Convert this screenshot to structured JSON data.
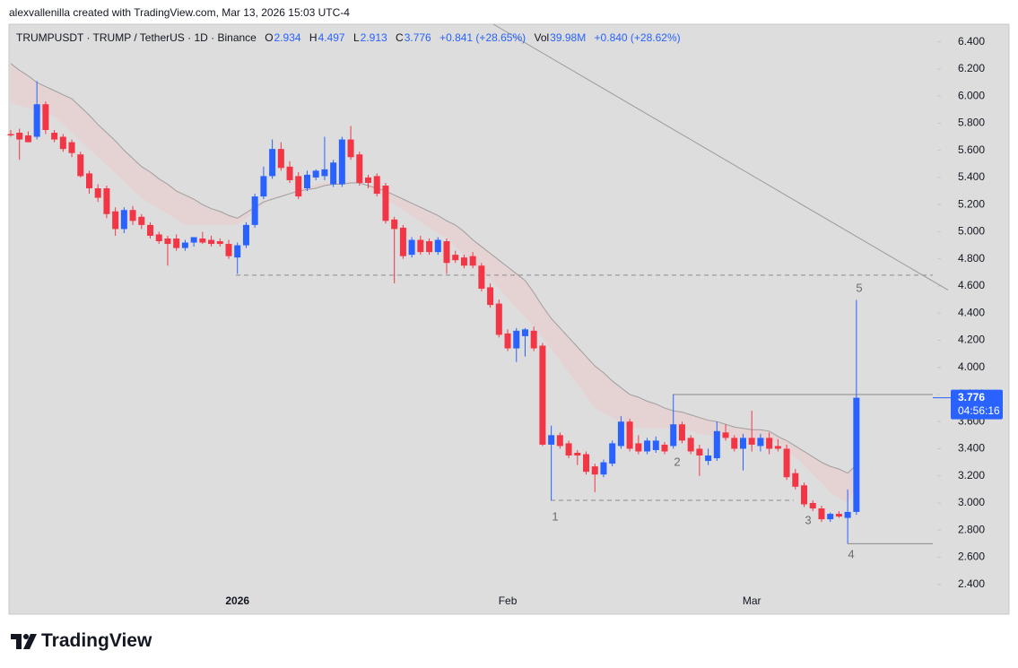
{
  "header": {
    "credit": "alexvallenilla created with TradingView.com, Mar 13, 2026 15:03 UTC-4",
    "symbol": "TRUMPUSDT · TRUMP / TetherUS · 1D · Binance",
    "ohlc_labels": [
      "O",
      "H",
      "L",
      "C"
    ],
    "change": "+0.841 (+28.65%)",
    "volume_label": "Vol",
    "volume": "39.98M",
    "volume_change": "+0.840 (+28.62%)"
  },
  "chart_data": {
    "type": "candlestick",
    "categories": [
      null,
      null,
      null,
      null,
      null,
      null,
      null,
      null,
      null,
      null,
      null,
      null,
      null,
      null,
      null,
      null,
      null,
      null,
      null,
      null,
      null,
      null,
      null,
      null,
      null,
      null,
      "2026",
      null,
      null,
      null,
      null,
      null,
      null,
      null,
      null,
      null,
      null,
      null,
      null,
      null,
      null,
      null,
      null,
      null,
      null,
      null,
      null,
      null,
      null,
      null,
      null,
      null,
      null,
      null,
      null,
      null,
      null,
      "Feb",
      null,
      null,
      null,
      null,
      null,
      null,
      null,
      null,
      null,
      null,
      null,
      null,
      null,
      null,
      null,
      null,
      null,
      null,
      null,
      null,
      null,
      null,
      null,
      null,
      null,
      null,
      null,
      "Mar",
      null,
      null,
      null,
      null,
      null,
      null,
      null,
      null,
      null,
      null,
      null,
      null
    ],
    "open": [
      5.72,
      5.73,
      5.71,
      5.7,
      5.94,
      5.73,
      5.7,
      5.66,
      5.57,
      5.43,
      5.32,
      5.32,
      5.15,
      5.02,
      5.16,
      5.11,
      5.05,
      4.98,
      4.95,
      4.95,
      4.88,
      4.92,
      4.95,
      4.94,
      4.93,
      4.91,
      4.81,
      4.9,
      5.05,
      5.26,
      5.41,
      5.61,
      5.48,
      5.41,
      5.32,
      5.4,
      5.41,
      5.35,
      5.35,
      5.68,
      5.57,
      5.4,
      5.41,
      5.34,
      5.09,
      5.03,
      4.83,
      4.94,
      4.93,
      4.85,
      4.93,
      4.83,
      4.81,
      4.82,
      4.75,
      4.59,
      4.47,
      4.25,
      4.14,
      4.23,
      4.27,
      4.16,
      3.43,
      3.5,
      3.44,
      3.37,
      3.36,
      3.27,
      3.21,
      3.29,
      3.42,
      3.6,
      3.44,
      3.38,
      3.39,
      3.43,
      3.42,
      3.58,
      3.48,
      3.4,
      3.31,
      3.33,
      3.52,
      3.48,
      3.4,
      3.48,
      3.42,
      3.48,
      3.42,
      3.4,
      3.22,
      3.13,
      3.0,
      2.96,
      2.88,
      2.92,
      2.89,
      2.934
    ],
    "high": [
      5.75,
      5.76,
      5.74,
      6.11,
      5.96,
      5.75,
      5.72,
      5.68,
      5.59,
      5.45,
      5.35,
      5.34,
      5.18,
      5.18,
      5.19,
      5.13,
      5.07,
      5.0,
      4.97,
      4.98,
      4.94,
      4.96,
      5.0,
      4.97,
      4.95,
      4.94,
      4.92,
      5.07,
      5.28,
      5.48,
      5.68,
      5.66,
      5.52,
      5.44,
      5.45,
      5.46,
      5.7,
      5.53,
      5.7,
      5.78,
      5.59,
      5.42,
      5.43,
      5.36,
      5.11,
      5.05,
      4.96,
      4.97,
      4.95,
      4.96,
      4.95,
      4.86,
      4.83,
      4.85,
      4.77,
      4.62,
      4.5,
      4.28,
      4.29,
      4.29,
      4.3,
      4.18,
      3.57,
      3.52,
      3.46,
      3.39,
      3.38,
      3.29,
      3.32,
      3.46,
      3.64,
      3.62,
      3.5,
      3.48,
      3.49,
      3.45,
      3.8,
      3.6,
      3.5,
      3.43,
      3.4,
      3.6,
      3.58,
      3.5,
      3.51,
      3.68,
      3.51,
      3.52,
      3.47,
      3.43,
      3.25,
      3.15,
      3.02,
      2.98,
      2.93,
      2.94,
      3.1,
      4.497
    ],
    "low": [
      5.7,
      5.53,
      5.66,
      5.68,
      5.72,
      5.66,
      5.59,
      5.55,
      5.4,
      5.28,
      5.22,
      5.1,
      4.97,
      4.99,
      5.05,
      5.02,
      4.95,
      4.91,
      4.75,
      4.86,
      4.86,
      4.89,
      4.91,
      4.89,
      4.89,
      4.8,
      4.69,
      4.88,
      5.03,
      5.24,
      5.39,
      5.45,
      5.36,
      5.24,
      5.3,
      5.38,
      5.38,
      5.33,
      5.33,
      5.53,
      5.34,
      5.32,
      5.26,
      5.06,
      4.62,
      4.8,
      4.81,
      4.83,
      4.83,
      4.83,
      4.69,
      4.77,
      4.73,
      4.73,
      4.56,
      4.44,
      4.22,
      4.12,
      4.04,
      4.08,
      4.12,
      3.42,
      3.02,
      3.4,
      3.33,
      3.28,
      3.21,
      3.08,
      3.19,
      3.27,
      3.4,
      3.38,
      3.36,
      3.36,
      3.37,
      3.36,
      3.4,
      3.44,
      3.36,
      3.2,
      3.28,
      3.31,
      3.46,
      3.38,
      3.24,
      3.38,
      3.38,
      3.36,
      3.38,
      3.17,
      3.1,
      2.97,
      2.94,
      2.86,
      2.86,
      2.89,
      2.7,
      2.913
    ],
    "close": [
      5.71,
      5.68,
      5.66,
      5.94,
      5.75,
      5.68,
      5.61,
      5.58,
      5.41,
      5.32,
      5.25,
      5.13,
      5.02,
      5.16,
      5.08,
      5.05,
      4.97,
      4.93,
      4.91,
      4.88,
      4.92,
      4.96,
      4.92,
      4.91,
      4.91,
      4.82,
      4.9,
      5.05,
      5.26,
      5.41,
      5.61,
      5.47,
      5.38,
      5.26,
      5.42,
      5.45,
      5.46,
      5.51,
      5.68,
      5.55,
      5.36,
      5.36,
      5.28,
      5.08,
      5.02,
      4.82,
      4.94,
      4.85,
      4.85,
      4.94,
      4.77,
      4.79,
      4.75,
      4.75,
      4.58,
      4.46,
      4.24,
      4.14,
      4.27,
      4.28,
      4.14,
      3.43,
      3.5,
      3.42,
      3.35,
      3.35,
      3.23,
      3.21,
      3.3,
      3.44,
      3.6,
      3.4,
      3.38,
      3.46,
      3.46,
      3.38,
      3.58,
      3.46,
      3.38,
      3.35,
      3.35,
      3.53,
      3.48,
      3.4,
      3.48,
      3.43,
      3.48,
      3.4,
      3.4,
      3.19,
      3.12,
      2.99,
      2.96,
      2.88,
      2.92,
      2.9,
      2.934,
      3.776
    ],
    "up_color": "#2962ff",
    "down_color": "#f23645",
    "overlays": {
      "slow": {
        "color": "#9e9e9e",
        "values": [
          6.24,
          6.19,
          6.15,
          6.1,
          6.07,
          6.04,
          6.01,
          5.98,
          5.92,
          5.86,
          5.79,
          5.73,
          5.67,
          5.6,
          5.54,
          5.48,
          5.44,
          5.39,
          5.35,
          5.3,
          5.27,
          5.24,
          5.2,
          5.17,
          5.15,
          5.12,
          5.1,
          5.14,
          5.18,
          5.22,
          5.24,
          5.26,
          5.28,
          5.3,
          5.31,
          5.32,
          5.34,
          5.35,
          5.35,
          5.36,
          5.36,
          5.34,
          5.32,
          5.3,
          5.27,
          5.24,
          5.21,
          5.18,
          5.15,
          5.12,
          5.08,
          5.05,
          5.0,
          4.94,
          4.89,
          4.84,
          4.79,
          4.74,
          4.69,
          4.64,
          4.55,
          4.45,
          4.36,
          4.29,
          4.22,
          4.15,
          4.08,
          4.01,
          3.96,
          3.9,
          3.85,
          3.8,
          3.78,
          3.75,
          3.73,
          3.7,
          3.68,
          3.67,
          3.65,
          3.63,
          3.61,
          3.6,
          3.58,
          3.56,
          3.55,
          3.54,
          3.54,
          3.53,
          3.49,
          3.46,
          3.42,
          3.38,
          3.34,
          3.3,
          3.27,
          3.25,
          3.22,
          3.28
        ]
      },
      "fast": {
        "values": [
          5.95,
          5.93,
          5.91,
          5.89,
          5.87,
          5.85,
          5.79,
          5.73,
          5.67,
          5.61,
          5.55,
          5.49,
          5.43,
          5.37,
          5.31,
          5.25,
          5.21,
          5.17,
          5.13,
          5.09,
          5.05,
          5.05,
          5.05,
          5.05,
          5.05,
          5.05,
          5.05,
          5.1,
          5.15,
          5.2,
          5.25,
          5.27,
          5.29,
          5.31,
          5.33,
          5.35,
          5.36,
          5.36,
          5.37,
          5.37,
          5.38,
          5.33,
          5.29,
          5.24,
          5.2,
          5.16,
          5.12,
          5.07,
          5.03,
          4.99,
          4.95,
          4.89,
          4.83,
          4.77,
          4.71,
          4.65,
          4.58,
          4.51,
          4.44,
          4.37,
          4.3,
          4.22,
          4.13,
          4.05,
          3.96,
          3.88,
          3.79,
          3.7,
          3.66,
          3.63,
          3.59,
          3.55,
          3.55,
          3.55,
          3.55,
          3.55,
          3.55,
          3.54,
          3.53,
          3.51,
          3.5,
          3.49,
          3.49,
          3.48,
          3.48,
          3.47,
          3.46,
          3.46,
          3.45,
          3.39,
          3.34,
          3.28,
          3.21,
          3.15,
          3.08,
          3.04,
          3.0,
          3.12
        ]
      },
      "band_color": "#e8cfcf"
    },
    "ylim": [
      2.18,
      6.53
    ],
    "yticks": [
      {
        "value": 2.4,
        "label": "2.400"
      },
      {
        "value": 2.6,
        "label": "2.600"
      },
      {
        "value": 2.8,
        "label": "2.800"
      },
      {
        "value": 3.0,
        "label": "3.000"
      },
      {
        "value": 3.2,
        "label": "3.200"
      },
      {
        "value": 3.4,
        "label": "3.400"
      },
      {
        "value": 3.6,
        "label": "3.600"
      },
      {
        "value": 3.8,
        "label": "3.800"
      },
      {
        "value": 4.0,
        "label": "4.000"
      },
      {
        "value": 4.2,
        "label": "4.200"
      },
      {
        "value": 4.4,
        "label": "4.400"
      },
      {
        "value": 4.6,
        "label": "4.600"
      },
      {
        "value": 4.8,
        "label": "4.800"
      },
      {
        "value": 5.0,
        "label": "5.000"
      },
      {
        "value": 5.2,
        "label": "5.200"
      },
      {
        "value": 5.4,
        "label": "5.400"
      },
      {
        "value": 5.6,
        "label": "5.600"
      },
      {
        "value": 5.8,
        "label": "5.800"
      },
      {
        "value": 6.0,
        "label": "6.000"
      },
      {
        "value": 6.2,
        "label": "6.200"
      },
      {
        "value": 6.4,
        "label": "6.400"
      }
    ],
    "grid": false,
    "countdown": "04:56:16",
    "levels": [
      {
        "value": 4.68,
        "style": "dashed"
      },
      {
        "value": 3.02,
        "style": "dashed"
      },
      {
        "value": 3.8,
        "style": "solid"
      },
      {
        "value": 2.7,
        "style": "solid"
      }
    ],
    "trendline": [
      6.53,
      4.57
    ],
    "annotations": [
      "1",
      "2",
      "3",
      "4",
      "5"
    ]
  },
  "footer": {
    "brand": "TradingView"
  }
}
